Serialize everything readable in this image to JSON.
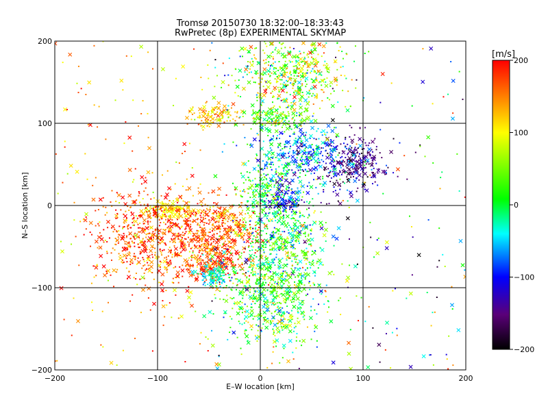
{
  "chart_data": {
    "type": "scatter",
    "title": "Tromsø 20150730 18:32:00–18:33:43",
    "subtitle": "RwPretec (8p) EXPERIMENTAL SKYMAP",
    "xlabel": "E–W location [km]",
    "ylabel": "N–S location [km]",
    "xlim": [
      -200,
      200
    ],
    "ylim": [
      -200,
      200
    ],
    "x_ticks": [
      -200,
      -100,
      0,
      100,
      200
    ],
    "y_ticks": [
      -200,
      -100,
      0,
      100,
      200
    ],
    "x_tick_labels": [
      "−200",
      "−100",
      "0",
      "100",
      "200"
    ],
    "y_tick_labels": [
      "−200",
      "−100",
      "0",
      "100",
      "200"
    ],
    "grid": true,
    "colorbar": {
      "label": "[m/s]",
      "range": [
        -200,
        200
      ],
      "ticks": [
        200,
        100,
        0,
        -100,
        -200
      ],
      "tick_labels": [
        "200",
        "100",
        "0",
        "−100",
        "−200"
      ],
      "colormap": [
        "#000000",
        "#5a0078",
        "#0000ff",
        "#00ffff",
        "#00ff00",
        "#ffff00",
        "#ff0000"
      ]
    },
    "marker_types": [
      "dot",
      "x"
    ],
    "clusters": [
      {
        "x": 5,
        "y": 15,
        "sx": 14,
        "sy": 18,
        "v": 10,
        "vs": 35
      },
      {
        "x": 22,
        "y": 5,
        "sx": 10,
        "sy": 7,
        "v": -110,
        "vs": 25
      },
      {
        "x": -40,
        "y": -30,
        "sx": 22,
        "sy": 20,
        "v": 160,
        "vs": 40
      },
      {
        "x": -50,
        "y": -70,
        "sx": 15,
        "sy": 12,
        "v": 170,
        "vs": 30
      },
      {
        "x": -45,
        "y": -85,
        "sx": 8,
        "sy": 8,
        "v": -40,
        "vs": 25
      },
      {
        "x": 90,
        "y": 50,
        "sx": 16,
        "sy": 18,
        "v": -145,
        "vs": 25
      },
      {
        "x": -45,
        "y": 110,
        "sx": 12,
        "sy": 7,
        "v": 120,
        "vs": 30
      },
      {
        "x": 15,
        "y": 105,
        "sx": 15,
        "sy": 8,
        "v": 40,
        "vs": 40
      },
      {
        "x": -90,
        "y": -5,
        "sx": 12,
        "sy": 6,
        "v": 105,
        "vs": 15
      },
      {
        "x": 25,
        "y": -40,
        "sx": 20,
        "sy": 25,
        "v": 0,
        "vs": 55
      },
      {
        "x": 30,
        "y": 160,
        "sx": 25,
        "sy": 25,
        "v": 60,
        "vs": 60
      },
      {
        "x": 40,
        "y": 60,
        "sx": 25,
        "sy": 20,
        "v": -60,
        "vs": 50
      },
      {
        "x": 10,
        "y": -110,
        "sx": 25,
        "sy": 30,
        "v": 20,
        "vs": 50
      },
      {
        "x": -100,
        "y": -40,
        "sx": 30,
        "sy": 30,
        "v": 170,
        "vs": 40
      }
    ],
    "background_spread": {
      "xlim": [
        -200,
        200
      ],
      "ylim": [
        -200,
        200
      ],
      "v_range": [
        -200,
        200
      ]
    }
  }
}
